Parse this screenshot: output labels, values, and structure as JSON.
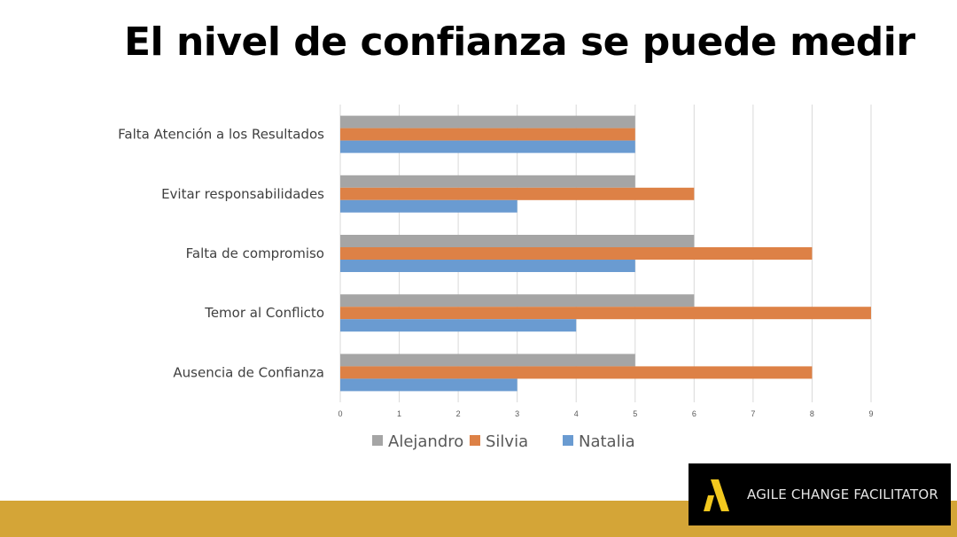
{
  "slide": {
    "title": "El nivel de confianza se puede medir",
    "logo_text": "AGILE CHANGE FACILITATOR",
    "band_color": "#d4a537"
  },
  "chart_data": {
    "type": "bar",
    "orientation": "horizontal",
    "categories": [
      "Falta Atención a los Resultados",
      "Evitar responsabilidades",
      "Falta de compromiso",
      "Temor al Conflicto",
      "Ausencia de Confianza"
    ],
    "series": [
      {
        "name": "Alejandro",
        "color": "#a5a5a5",
        "values": [
          5,
          5,
          6,
          6,
          5
        ]
      },
      {
        "name": "Silvia",
        "color": "#dd8146",
        "values": [
          5,
          6,
          8,
          9,
          8
        ]
      },
      {
        "name": "Natalia",
        "color": "#6a9bd1",
        "values": [
          5,
          3,
          5,
          4,
          3
        ]
      }
    ],
    "xlim": [
      0,
      9
    ],
    "xticks": [
      "0",
      "1",
      "2",
      "3",
      "4",
      "5",
      "6",
      "7",
      "8",
      "9"
    ],
    "grid": true,
    "legend": "bottom"
  }
}
